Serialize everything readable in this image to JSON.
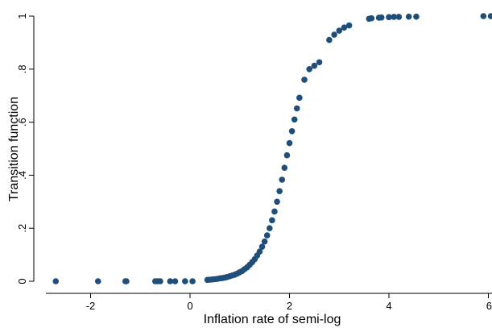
{
  "chart_data": {
    "type": "scatter",
    "xlabel": "Inflation rate of semi-log",
    "ylabel": "Transition function",
    "xlim": [
      -2.8,
      6.1
    ],
    "ylim": [
      0,
      1
    ],
    "x_ticks": [
      {
        "value": -2,
        "label": "-2"
      },
      {
        "value": 0,
        "label": "0"
      },
      {
        "value": 2,
        "label": "2"
      },
      {
        "value": 4,
        "label": "4"
      },
      {
        "value": 6,
        "label": "6"
      }
    ],
    "y_ticks": [
      {
        "value": 0,
        "label": "0"
      },
      {
        "value": 0.2,
        "label": ".2"
      },
      {
        "value": 0.4,
        "label": ".4"
      },
      {
        "value": 0.6,
        "label": ".6"
      },
      {
        "value": 0.8,
        "label": ".8"
      },
      {
        "value": 1,
        "label": "1"
      }
    ],
    "marker_color": "#1f4e79",
    "series": [
      {
        "points": [
          [
            -2.7,
            0.0
          ],
          [
            -1.85,
            0.0
          ],
          [
            -1.3,
            0.0
          ],
          [
            -1.28,
            0.0
          ],
          [
            -0.7,
            0.0
          ],
          [
            -0.65,
            0.0
          ],
          [
            -0.6,
            0.0
          ],
          [
            -0.4,
            0.0
          ],
          [
            -0.3,
            0.0
          ],
          [
            -0.1,
            0.0
          ],
          [
            0.05,
            0.0
          ],
          [
            0.35,
            0.005
          ],
          [
            0.4,
            0.006
          ],
          [
            0.45,
            0.007
          ],
          [
            0.5,
            0.008
          ],
          [
            0.55,
            0.009
          ],
          [
            0.6,
            0.011
          ],
          [
            0.65,
            0.012
          ],
          [
            0.7,
            0.014
          ],
          [
            0.75,
            0.016
          ],
          [
            0.8,
            0.019
          ],
          [
            0.85,
            0.022
          ],
          [
            0.9,
            0.025
          ],
          [
            0.95,
            0.029
          ],
          [
            1.0,
            0.034
          ],
          [
            1.05,
            0.039
          ],
          [
            1.1,
            0.046
          ],
          [
            1.15,
            0.053
          ],
          [
            1.2,
            0.062
          ],
          [
            1.25,
            0.072
          ],
          [
            1.3,
            0.083
          ],
          [
            1.35,
            0.097
          ],
          [
            1.4,
            0.112
          ],
          [
            1.45,
            0.13
          ],
          [
            1.5,
            0.15
          ],
          [
            1.55,
            0.173
          ],
          [
            1.6,
            0.2
          ],
          [
            1.65,
            0.23
          ],
          [
            1.7,
            0.263
          ],
          [
            1.75,
            0.3
          ],
          [
            1.8,
            0.34
          ],
          [
            1.85,
            0.383
          ],
          [
            1.9,
            0.428
          ],
          [
            1.95,
            0.475
          ],
          [
            2.0,
            0.521
          ],
          [
            2.05,
            0.566
          ],
          [
            2.1,
            0.61
          ],
          [
            2.15,
            0.652
          ],
          [
            2.2,
            0.692
          ],
          [
            2.3,
            0.76
          ],
          [
            2.4,
            0.8
          ],
          [
            2.5,
            0.813
          ],
          [
            2.6,
            0.826
          ],
          [
            2.8,
            0.91
          ],
          [
            2.9,
            0.93
          ],
          [
            3.0,
            0.945
          ],
          [
            3.1,
            0.957
          ],
          [
            3.2,
            0.965
          ],
          [
            3.6,
            0.99
          ],
          [
            3.65,
            0.992
          ],
          [
            3.8,
            0.994
          ],
          [
            3.85,
            0.995
          ],
          [
            4.0,
            0.996
          ],
          [
            4.1,
            0.997
          ],
          [
            4.2,
            0.997
          ],
          [
            4.4,
            0.998
          ],
          [
            4.55,
            0.998
          ],
          [
            5.9,
            1.0
          ],
          [
            6.05,
            1.0
          ]
        ]
      }
    ]
  }
}
